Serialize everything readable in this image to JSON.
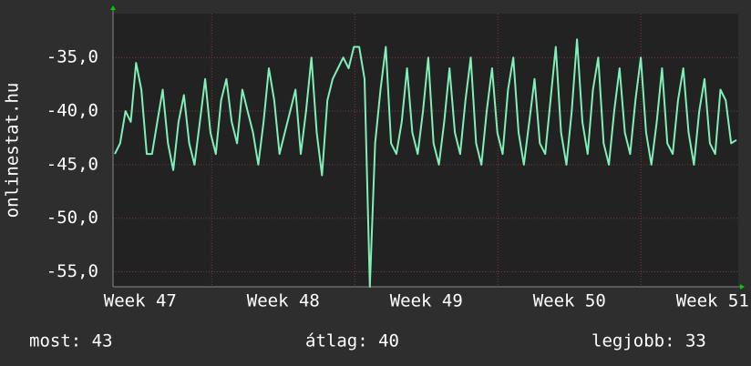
{
  "chart_data": {
    "type": "line",
    "y_label": "onlinestat.hu",
    "color": "#80f0b8",
    "values": [
      -44,
      -43,
      -40,
      -41,
      -35.5,
      -38,
      -44,
      -44,
      -41,
      -38,
      -43,
      -45.5,
      -41,
      -38.5,
      -43,
      -45,
      -41,
      -37,
      -42,
      -44,
      -39,
      -37,
      -41,
      -43,
      -38,
      -40,
      -42,
      -45,
      -41,
      -36,
      -39,
      -44,
      -42,
      -40,
      -38,
      -44,
      -40,
      -35,
      -42,
      -46,
      -39,
      -37,
      -36,
      -35,
      -36,
      -34,
      -34,
      -37,
      -56.4,
      -43,
      -38,
      -34,
      -43,
      -44,
      -41,
      -36,
      -42,
      -44,
      -40,
      -35,
      -43,
      -45,
      -41,
      -36,
      -42,
      -44,
      -39,
      -35,
      -43,
      -45,
      -40,
      -36,
      -42,
      -44,
      -38,
      -35,
      -42,
      -45,
      -41,
      -37,
      -43,
      -44,
      -39,
      -34,
      -42,
      -45,
      -40,
      -33.3,
      -41,
      -44,
      -38,
      -35,
      -43,
      -45,
      -40,
      -36,
      -42,
      -44,
      -39,
      -35,
      -42,
      -45,
      -41,
      -36,
      -43,
      -44,
      -39,
      -36,
      -42,
      -45,
      -40,
      -37,
      -43,
      -44,
      -38,
      -39,
      -43,
      -42.7
    ],
    "ylim": [
      -56.4,
      -30.9
    ],
    "yticks": [
      {
        "value": -35,
        "label": "-35,0"
      },
      {
        "value": -40,
        "label": "-40,0"
      },
      {
        "value": -45,
        "label": "-45,0"
      },
      {
        "value": -50,
        "label": "-50,0"
      },
      {
        "value": -55,
        "label": "-55,0"
      }
    ],
    "xlim": [
      47.31,
      51.68
    ],
    "xticks": [
      {
        "value": 47.5,
        "label": "Week 47"
      },
      {
        "value": 48.5,
        "label": "Week 48"
      },
      {
        "value": 49.5,
        "label": "Week 49"
      },
      {
        "value": 50.5,
        "label": "Week 50"
      },
      {
        "value": 51.5,
        "label": "Week 51"
      }
    ],
    "x_grid": [
      48,
      49,
      50,
      51
    ],
    "grid": true,
    "footer": [
      "most: 43",
      "átlag: 40",
      "legjobb: 33"
    ]
  }
}
